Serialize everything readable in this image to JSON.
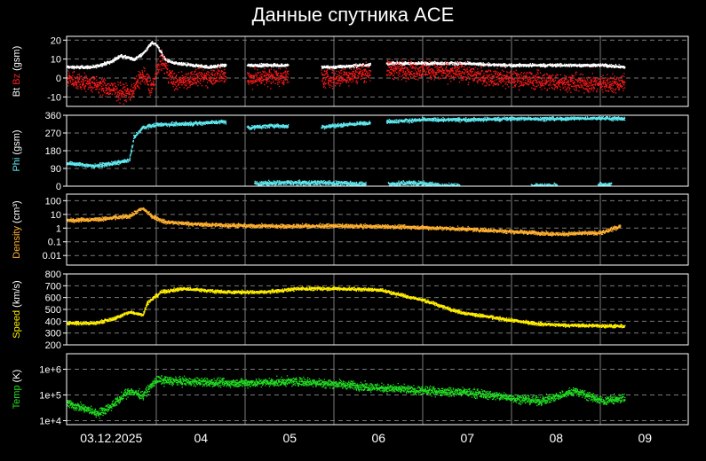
{
  "page": {
    "title": "Данные спутника ACE"
  },
  "colors": {
    "background": "#000000",
    "frame": "#ffffff",
    "grid": "#7a7a7a",
    "bt": "#ffffff",
    "bz": "#ff1a1a",
    "phi": "#5fe8f0",
    "density": "#ffb030",
    "speed": "#ffee00",
    "temp": "#22e022"
  },
  "x_axis": {
    "ticks": [
      {
        "day": 0,
        "label": "03.12.2025"
      },
      {
        "day": 1,
        "label": "04"
      },
      {
        "day": 2,
        "label": "05"
      },
      {
        "day": 3,
        "label": "06"
      },
      {
        "day": 4,
        "label": "07"
      },
      {
        "day": 5,
        "label": "08"
      },
      {
        "day": 6,
        "label": "09"
      }
    ]
  },
  "chart_data": [
    {
      "type": "scatter",
      "ylabel": [
        "Bt",
        " ",
        "Bz",
        " (gsm)"
      ],
      "ylabel_colors": [
        "#ffffff",
        "#ffffff",
        "#ff1a1a",
        "#ffffff"
      ],
      "yrange": [
        -15,
        22
      ],
      "yticks": [
        {
          "v": 20,
          "l": "20"
        },
        {
          "v": 10,
          "l": "10"
        },
        {
          "v": 0,
          "l": "0"
        },
        {
          "v": -10,
          "l": "-10"
        }
      ],
      "grid": true,
      "series": [
        {
          "color": "#ffffff",
          "spread": 0.7,
          "points": [
            [
              0,
              6
            ],
            [
              0.3,
              6
            ],
            [
              0.5,
              9
            ],
            [
              0.6,
              12
            ],
            [
              0.75,
              10
            ],
            [
              0.85,
              13
            ],
            [
              0.95,
              19
            ],
            [
              1.0,
              18
            ],
            [
              1.1,
              10
            ],
            [
              1.2,
              8
            ],
            [
              1.4,
              7
            ],
            [
              1.6,
              6
            ],
            [
              1.75,
              7
            ],
            [
              2.05,
              7
            ],
            [
              2.3,
              7
            ],
            [
              2.5,
              7
            ],
            [
              2.8,
              6
            ],
            [
              3.0,
              6
            ],
            [
              3.3,
              7
            ],
            [
              3.6,
              8
            ],
            [
              4.0,
              8
            ],
            [
              4.4,
              8
            ],
            [
              4.9,
              7
            ],
            [
              5.3,
              7
            ],
            [
              6.0,
              7
            ],
            [
              6.25,
              6
            ]
          ],
          "gaps": [
            [
              1.78,
              2.02
            ],
            [
              2.48,
              2.85
            ],
            [
              3.4,
              3.58
            ]
          ]
        },
        {
          "color": "#ff1a1a",
          "spread": 4,
          "points": [
            [
              0,
              0
            ],
            [
              0.3,
              -3
            ],
            [
              0.5,
              -6
            ],
            [
              0.7,
              -8
            ],
            [
              0.85,
              2
            ],
            [
              0.95,
              -5
            ],
            [
              1.05,
              10
            ],
            [
              1.2,
              -2
            ],
            [
              1.4,
              0
            ],
            [
              1.6,
              1
            ],
            [
              1.75,
              2
            ],
            [
              2.05,
              0
            ],
            [
              2.3,
              1
            ],
            [
              2.5,
              1
            ],
            [
              2.8,
              0
            ],
            [
              3.0,
              0
            ],
            [
              3.3,
              3
            ],
            [
              3.6,
              5
            ],
            [
              4.0,
              4
            ],
            [
              4.4,
              3
            ],
            [
              4.9,
              0
            ],
            [
              5.3,
              -1
            ],
            [
              5.6,
              -2
            ],
            [
              6.0,
              -3
            ],
            [
              6.25,
              -2
            ]
          ],
          "gaps": [
            [
              1.78,
              2.02
            ],
            [
              2.48,
              2.85
            ],
            [
              3.4,
              3.58
            ]
          ]
        }
      ]
    },
    {
      "type": "scatter",
      "ylabel": [
        "Phi",
        " (gsm)"
      ],
      "ylabel_colors": [
        "#5fe8f0",
        "#ffffff"
      ],
      "yrange": [
        0,
        360
      ],
      "yticks": [
        {
          "v": 360,
          "l": "360"
        },
        {
          "v": 270,
          "l": "270"
        },
        {
          "v": 180,
          "l": "180"
        },
        {
          "v": 90,
          "l": "90"
        },
        {
          "v": 0,
          "l": "0"
        }
      ],
      "grid": true,
      "series": [
        {
          "color": "#5fe8f0",
          "spread": 8,
          "points": [
            [
              0,
              120
            ],
            [
              0.3,
              105
            ],
            [
              0.55,
              120
            ],
            [
              0.7,
              135
            ],
            [
              0.75,
              250
            ],
            [
              0.85,
              300
            ],
            [
              1.0,
              315
            ],
            [
              1.4,
              320
            ],
            [
              1.75,
              330
            ],
            [
              2.05,
              300
            ],
            [
              2.3,
              310
            ],
            [
              2.5,
              305
            ],
            [
              2.8,
              300
            ],
            [
              3.0,
              310
            ],
            [
              3.4,
              325
            ],
            [
              4.0,
              340
            ],
            [
              4.5,
              340
            ],
            [
              5.0,
              345
            ],
            [
              5.5,
              345
            ],
            [
              6.0,
              348
            ],
            [
              6.25,
              345
            ]
          ],
          "gaps": [
            [
              1.78,
              2.02
            ],
            [
              2.48,
              2.85
            ],
            [
              3.4,
              3.58
            ]
          ]
        },
        {
          "color": "#5fe8f0",
          "spread": 10,
          "points": [
            [
              2.1,
              15
            ],
            [
              2.4,
              20
            ],
            [
              2.9,
              20
            ],
            [
              3.2,
              15
            ],
            [
              3.5,
              10
            ],
            [
              3.9,
              20
            ],
            [
              4.2,
              5
            ],
            [
              5.4,
              5
            ],
            [
              6.1,
              10
            ]
          ],
          "gaps": [
            [
              3.35,
              3.6
            ],
            [
              4.4,
              5.2
            ],
            [
              5.5,
              5.95
            ]
          ]
        }
      ]
    },
    {
      "type": "scatter",
      "scale": "log",
      "ylabel": [
        "Density",
        " (cm³)"
      ],
      "ylabel_colors": [
        "#ffb030",
        "#ffffff"
      ],
      "yrange": [
        0.002,
        300
      ],
      "yticks": [
        {
          "v": 100,
          "l": "100"
        },
        {
          "v": 10,
          "l": "10"
        },
        {
          "v": 1,
          "l": "1"
        },
        {
          "v": 0.1,
          "l": "0.1"
        },
        {
          "v": 0.01,
          "l": "0.01"
        }
      ],
      "grid": true,
      "series": [
        {
          "color": "#ffb030",
          "spread": 0.12,
          "points": [
            [
              0,
              4
            ],
            [
              0.4,
              5
            ],
            [
              0.7,
              8
            ],
            [
              0.8,
              20
            ],
            [
              0.85,
              30
            ],
            [
              0.95,
              8
            ],
            [
              1.1,
              3
            ],
            [
              1.5,
              2
            ],
            [
              2.0,
              1.6
            ],
            [
              2.5,
              1.5
            ],
            [
              3.0,
              1.6
            ],
            [
              3.5,
              1.4
            ],
            [
              4.0,
              1.2
            ],
            [
              4.5,
              0.9
            ],
            [
              5.0,
              0.6
            ],
            [
              5.5,
              0.4
            ],
            [
              6.0,
              0.5
            ],
            [
              6.2,
              1.5
            ]
          ],
          "gaps": []
        }
      ]
    },
    {
      "type": "scatter",
      "ylabel": [
        "Speed",
        " (km/s)"
      ],
      "ylabel_colors": [
        "#ffee00",
        "#ffffff"
      ],
      "yrange": [
        200,
        800
      ],
      "yticks": [
        {
          "v": 800,
          "l": "800"
        },
        {
          "v": 700,
          "l": "700"
        },
        {
          "v": 600,
          "l": "600"
        },
        {
          "v": 500,
          "l": "500"
        },
        {
          "v": 400,
          "l": "400"
        },
        {
          "v": 300,
          "l": "300"
        },
        {
          "v": 200,
          "l": "200"
        }
      ],
      "grid": true,
      "series": [
        {
          "color": "#ffee00",
          "spread": 12,
          "points": [
            [
              0,
              390
            ],
            [
              0.3,
              385
            ],
            [
              0.5,
              420
            ],
            [
              0.7,
              480
            ],
            [
              0.85,
              460
            ],
            [
              0.9,
              560
            ],
            [
              1.05,
              650
            ],
            [
              1.3,
              680
            ],
            [
              1.8,
              650
            ],
            [
              2.2,
              650
            ],
            [
              2.6,
              680
            ],
            [
              3.0,
              680
            ],
            [
              3.5,
              670
            ],
            [
              4.0,
              580
            ],
            [
              4.4,
              480
            ],
            [
              4.9,
              420
            ],
            [
              5.3,
              380
            ],
            [
              5.6,
              370
            ],
            [
              6.0,
              365
            ],
            [
              6.25,
              360
            ]
          ],
          "gaps": []
        }
      ]
    },
    {
      "type": "scatter",
      "scale": "log",
      "ylabel": [
        "Temp",
        " (K)"
      ],
      "ylabel_colors": [
        "#22e022",
        "#ffffff"
      ],
      "yrange": [
        7000,
        4000000
      ],
      "yticks": [
        {
          "v": 1000000,
          "l": "1e+6"
        },
        {
          "v": 100000,
          "l": "1e+5"
        },
        {
          "v": 10000,
          "l": "1e+4"
        }
      ],
      "grid": true,
      "series": [
        {
          "color": "#22e022",
          "spread": 0.14,
          "points": [
            [
              0,
              50000
            ],
            [
              0.2,
              30000
            ],
            [
              0.35,
              20000
            ],
            [
              0.5,
              40000
            ],
            [
              0.7,
              150000
            ],
            [
              0.85,
              100000
            ],
            [
              1.0,
              400000
            ],
            [
              1.3,
              350000
            ],
            [
              1.8,
              300000
            ],
            [
              2.2,
              320000
            ],
            [
              2.6,
              350000
            ],
            [
              3.0,
              280000
            ],
            [
              3.5,
              200000
            ],
            [
              4.0,
              150000
            ],
            [
              4.5,
              130000
            ],
            [
              5.0,
              80000
            ],
            [
              5.3,
              60000
            ],
            [
              5.7,
              150000
            ],
            [
              6.0,
              60000
            ],
            [
              6.25,
              80000
            ]
          ],
          "gaps": []
        }
      ]
    }
  ]
}
